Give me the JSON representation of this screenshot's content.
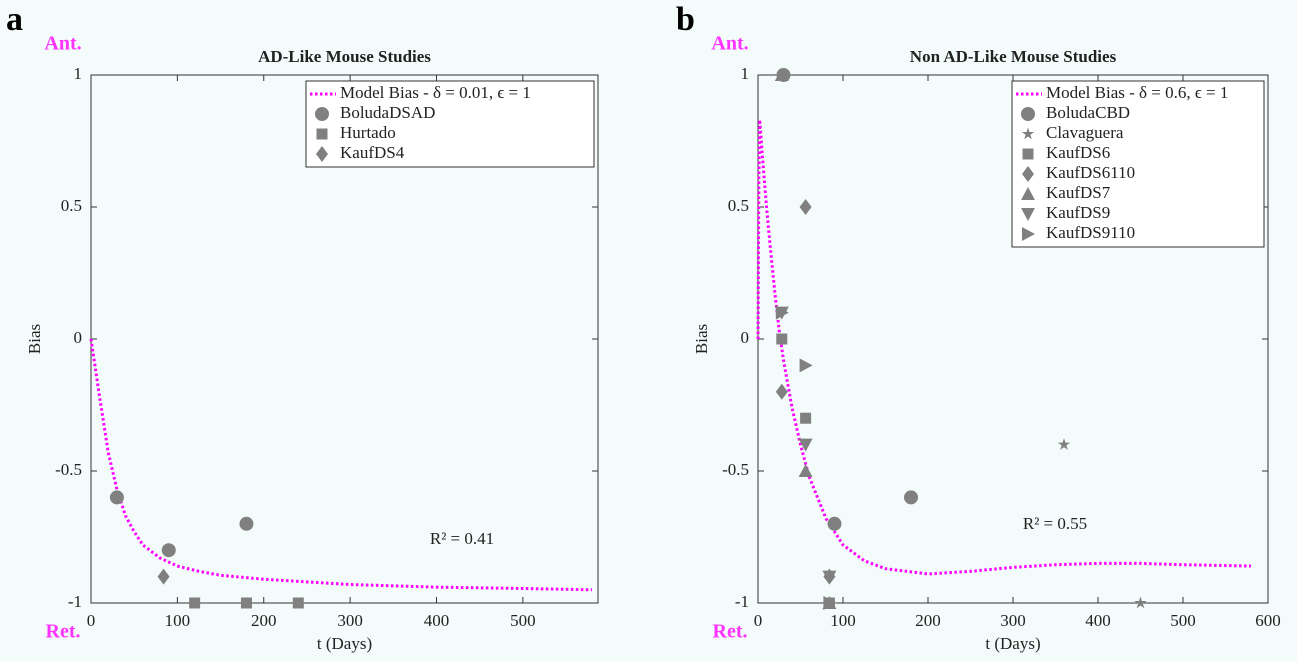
{
  "chart_data": [
    {
      "type": "scatter",
      "panel": "a",
      "title": "AD-Like Mouse Studies",
      "top_label": "Ant.",
      "bottom_label": "Ret.",
      "xlabel": "t (Days)",
      "ylabel": "Bias",
      "annotation": "R² = 0.41",
      "xlim": [
        0,
        587
      ],
      "xticks": [
        0,
        100,
        200,
        300,
        400,
        500
      ],
      "ylim": [
        -1,
        1
      ],
      "yticks": [
        -1,
        -0.5,
        0,
        0.5,
        1
      ],
      "series": [
        {
          "name": "Model Bias - δ = 0.01, ϵ = 1",
          "marker": "dotted-line",
          "color": "#ff00ff",
          "x": [
            0,
            10,
            20,
            30,
            40,
            50,
            60,
            80,
            100,
            125,
            150,
            200,
            250,
            300,
            400,
            500,
            580
          ],
          "values": [
            0,
            -0.22,
            -0.43,
            -0.57,
            -0.67,
            -0.73,
            -0.78,
            -0.83,
            -0.86,
            -0.88,
            -0.895,
            -0.91,
            -0.92,
            -0.93,
            -0.94,
            -0.945,
            -0.95
          ]
        },
        {
          "name": "BoludaDSAD",
          "marker": "circle",
          "color": "#808080",
          "x": [
            30,
            90,
            180
          ],
          "values": [
            -0.6,
            -0.8,
            -0.7
          ]
        },
        {
          "name": "Hurtado",
          "marker": "square",
          "color": "#808080",
          "x": [
            120,
            180,
            240
          ],
          "values": [
            -1,
            -1,
            -1
          ]
        },
        {
          "name": "KaufDS4",
          "marker": "diamond",
          "color": "#808080",
          "x": [
            84
          ],
          "values": [
            -0.9
          ]
        }
      ]
    },
    {
      "type": "scatter",
      "panel": "b",
      "title": "Non AD-Like Mouse Studies",
      "top_label": "Ant.",
      "bottom_label": "Ret.",
      "xlabel": "t (Days)",
      "ylabel": "Bias",
      "annotation": "R² = 0.55",
      "xlim": [
        0,
        600
      ],
      "xticks": [
        0,
        100,
        200,
        300,
        400,
        500,
        600
      ],
      "ylim": [
        -1,
        1
      ],
      "yticks": [
        -1,
        -0.5,
        0,
        0.5,
        1
      ],
      "series": [
        {
          "name": "Model Bias - δ = 0.6, ϵ = 1",
          "marker": "dotted-line",
          "color": "#ff00ff",
          "x": [
            0,
            1,
            2,
            5,
            10,
            15,
            20,
            25,
            30,
            40,
            50,
            60,
            80,
            100,
            125,
            150,
            200,
            250,
            300,
            350,
            400,
            450,
            500,
            580
          ],
          "values": [
            0,
            0.6,
            0.83,
            0.7,
            0.5,
            0.33,
            0.17,
            0.03,
            -0.08,
            -0.26,
            -0.4,
            -0.52,
            -0.68,
            -0.78,
            -0.84,
            -0.87,
            -0.89,
            -0.88,
            -0.865,
            -0.855,
            -0.85,
            -0.85,
            -0.855,
            -0.86
          ]
        },
        {
          "name": "BoludaCBD",
          "marker": "circle",
          "color": "#808080",
          "x": [
            30,
            90,
            180
          ],
          "values": [
            1,
            -0.7,
            -0.6
          ]
        },
        {
          "name": "Clavaguera",
          "marker": "star",
          "color": "#808080",
          "x": [
            84,
            360,
            450
          ],
          "values": [
            -1,
            -0.4,
            -1
          ]
        },
        {
          "name": "KaufDS6",
          "marker": "square",
          "color": "#808080",
          "x": [
            28,
            56,
            84
          ],
          "values": [
            0,
            -0.3,
            -1
          ]
        },
        {
          "name": "KaufDS6110",
          "marker": "diamond",
          "color": "#808080",
          "x": [
            28,
            56,
            84
          ],
          "values": [
            -0.2,
            0.5,
            -0.9
          ]
        },
        {
          "name": "KaufDS7",
          "marker": "triangle-up",
          "color": "#808080",
          "x": [
            28,
            56,
            84
          ],
          "values": [
            1,
            -0.5,
            -1
          ]
        },
        {
          "name": "KaufDS9",
          "marker": "triangle-down",
          "color": "#808080",
          "x": [
            28,
            56,
            84
          ],
          "values": [
            0.1,
            -0.4,
            -0.9
          ]
        },
        {
          "name": "KaufDS9110",
          "marker": "triangle-right",
          "color": "#808080",
          "x": [
            28,
            56,
            84
          ],
          "values": [
            0.1,
            -0.1,
            -1
          ]
        }
      ]
    }
  ]
}
